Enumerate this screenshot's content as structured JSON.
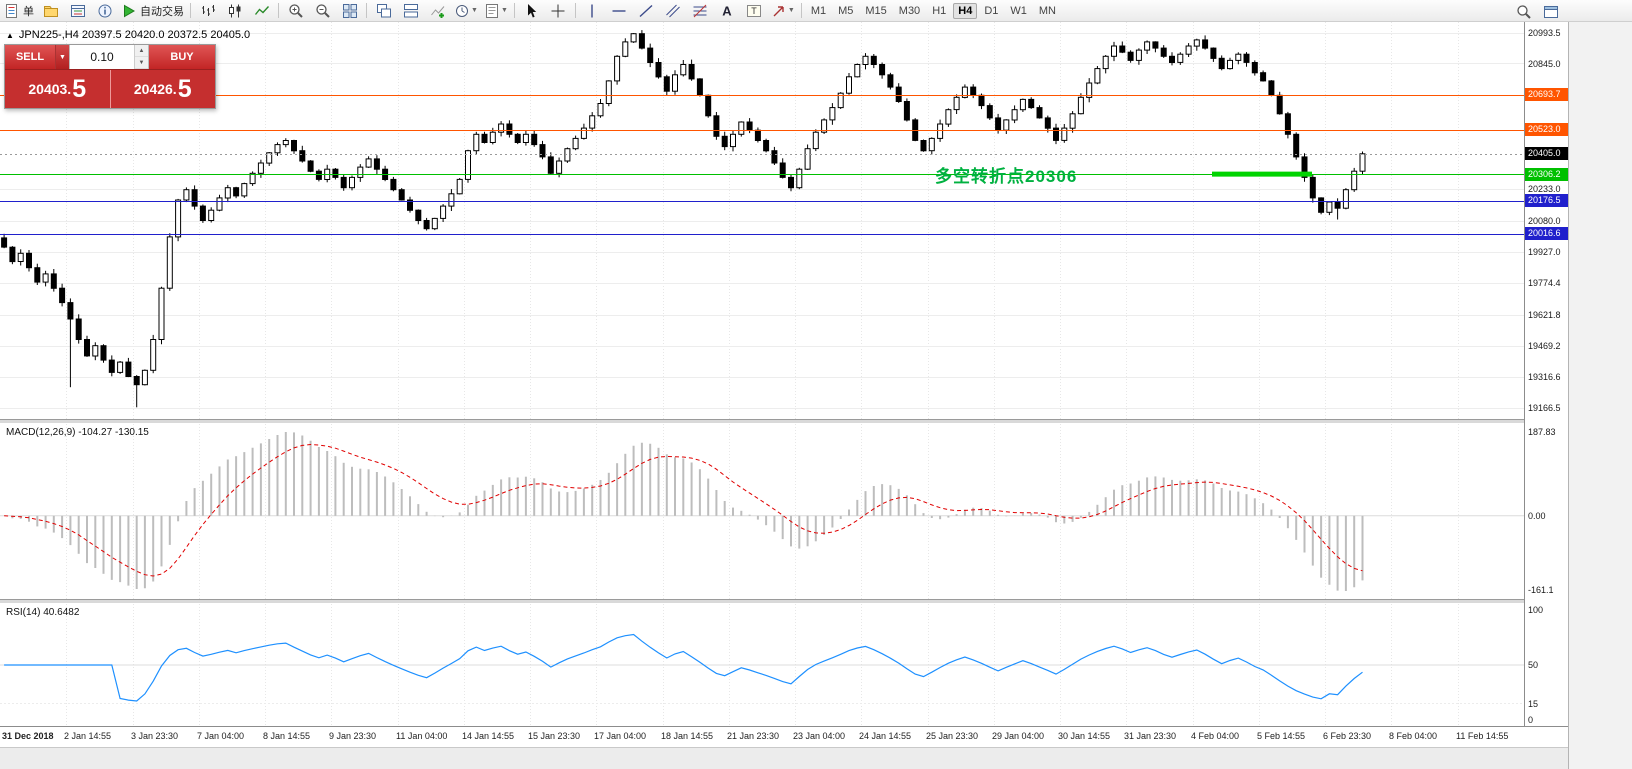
{
  "toolbar": {
    "items": [
      {
        "name": "new-order-button",
        "glyph": "order",
        "label": "单"
      },
      {
        "name": "charts-profile-icon",
        "glyph": "profile"
      },
      {
        "name": "market-watch-icon",
        "glyph": "mw"
      },
      {
        "name": "data-window-icon",
        "glyph": "info"
      },
      {
        "name": "autotrading-button",
        "glyph": "play",
        "label": "自动交易"
      },
      {
        "type": "sep"
      },
      {
        "name": "bar-chart-mode-icon",
        "glyph": "bars"
      },
      {
        "name": "candlestick-mode-icon",
        "glyph": "candle"
      },
      {
        "name": "line-chart-mode-icon",
        "glyph": "linec"
      },
      {
        "type": "sep"
      },
      {
        "name": "zoom-in-icon",
        "glyph": "zoomin"
      },
      {
        "name": "zoom-out-icon",
        "glyph": "zoomout"
      },
      {
        "name": "tile-windows-icon",
        "glyph": "tile"
      },
      {
        "type": "sep"
      },
      {
        "name": "cascade-windows-icon",
        "glyph": "cascade"
      },
      {
        "name": "arrange-windows-icon",
        "glyph": "tileh"
      },
      {
        "name": "indicators-icon",
        "glyph": "indic"
      },
      {
        "name": "periods-icon",
        "glyph": "clock",
        "dd": true
      },
      {
        "name": "templates-icon",
        "glyph": "tpl",
        "dd": true
      },
      {
        "type": "sep"
      },
      {
        "name": "cursor-icon",
        "glyph": "cursor"
      },
      {
        "name": "crosshair-icon",
        "glyph": "cross"
      },
      {
        "type": "sep"
      },
      {
        "name": "vertical-line-icon",
        "glyph": "vline"
      },
      {
        "name": "horizontal-line-icon",
        "glyph": "hline"
      },
      {
        "name": "trendline-icon",
        "glyph": "tline"
      },
      {
        "name": "equidistant-channel-icon",
        "glyph": "channel"
      },
      {
        "name": "fibonacci-icon",
        "glyph": "fibo"
      },
      {
        "name": "text-icon",
        "glyph": "textA"
      },
      {
        "name": "text-label-icon",
        "glyph": "textT"
      },
      {
        "name": "arrows-icon",
        "glyph": "arrow",
        "dd": true
      },
      {
        "type": "sep"
      }
    ],
    "timeframes": [
      "M1",
      "M5",
      "M15",
      "M30",
      "H1",
      "H4",
      "D1",
      "W1",
      "MN"
    ],
    "active_timeframe": "H4",
    "right_items": [
      {
        "name": "search-icon",
        "glyph": "search"
      },
      {
        "name": "new-chart-window-icon",
        "glyph": "window"
      }
    ]
  },
  "trade_panel": {
    "sell_label": "SELL",
    "buy_label": "BUY",
    "volume": "0.10",
    "bid_main": "20403.",
    "bid_big": "5",
    "ask_main": "20426.",
    "ask_big": "5"
  },
  "chart": {
    "collapse_icon": "▲",
    "symbol_header": "JPN225-,H4 20397.5 20420.0 20372.5 20405.0",
    "annotation_text": "多空转折点20306",
    "annotation_color": "#00b140"
  },
  "macd_panel": {
    "label": "MACD(12,26,9) -104.27 -130.15",
    "axis_top": "187.83",
    "axis_zero": "0.00",
    "axis_bottom": "-161.1"
  },
  "rsi_panel": {
    "label": "RSI(14) 40.6482",
    "axis_top": "100",
    "axis_mid": "50",
    "axis_low": "15",
    "axis_bottom": "0"
  },
  "time_axis": {
    "labels": [
      "31 Dec 2018",
      "2 Jan 14:55",
      "3 Jan 23:30",
      "7 Jan 04:00",
      "8 Jan 14:55",
      "9 Jan 23:30",
      "11 Jan 04:00",
      "14 Jan 14:55",
      "15 Jan 23:30",
      "17 Jan 04:00",
      "18 Jan 14:55",
      "21 Jan 23:30",
      "23 Jan 04:00",
      "24 Jan 14:55",
      "25 Jan 23:30",
      "29 Jan 04:00",
      "30 Jan 14:55",
      "31 Jan 23:30",
      "4 Feb 04:00",
      "5 Feb 14:55",
      "6 Feb 23:30",
      "8 Feb 04:00",
      "11 Feb 14:55"
    ]
  },
  "chart_data": {
    "type": "candlestick",
    "symbol": "JPN225-",
    "timeframe": "H4",
    "ohlc_current": {
      "open": "20397.5",
      "high": "20420.0",
      "low": "20372.5",
      "close": "20405.0"
    },
    "price_axis_top": 20993.5,
    "price_axis_bottom": 19166.5,
    "plain_ticks": [
      20845.0,
      20233.0,
      20080.0,
      19927.0,
      19774.4,
      19621.8,
      19469.2,
      19316.6
    ],
    "edge_ticks": [
      20993.5,
      19166.5
    ],
    "levels": [
      {
        "price": 20693.7,
        "label": "20693.7",
        "color": "#ff5500",
        "name": "resistance-line-20693"
      },
      {
        "price": 20523.0,
        "label": "20523.0",
        "color": "#ff5500",
        "name": "resistance-line-20523"
      },
      {
        "price": 20405.0,
        "label": "20405.0",
        "color": "#000000",
        "name": "current-price",
        "style": "current"
      },
      {
        "price": 20306.2,
        "label": "20306.2",
        "color": "#00c000",
        "name": "pivot-line-20306"
      },
      {
        "price": 20176.5,
        "label": "20176.5",
        "color": "#2020cc",
        "name": "support-line-20176"
      },
      {
        "price": 20016.6,
        "label": "20016.6",
        "color": "#2020cc",
        "name": "support-line-20016"
      }
    ],
    "highlight_segment": {
      "price": 20306.2,
      "x_start_frac": 0.795,
      "x_end_frac": 0.861,
      "color": "#00d400",
      "width": 5
    },
    "grid_slots": 184,
    "label_every": 8,
    "closes": [
      19950,
      19880,
      19920,
      19850,
      19780,
      19820,
      19750,
      19680,
      19600,
      19500,
      19420,
      19470,
      19400,
      19340,
      19390,
      19320,
      19280,
      19350,
      19500,
      19750,
      20000,
      20180,
      20230,
      20150,
      20080,
      20130,
      20190,
      20240,
      20200,
      20260,
      20310,
      20360,
      20410,
      20450,
      20470,
      20420,
      20370,
      20320,
      20280,
      20330,
      20290,
      20240,
      20290,
      20340,
      20380,
      20330,
      20280,
      20230,
      20180,
      20130,
      20080,
      20040,
      20090,
      20150,
      20210,
      20280,
      20420,
      20500,
      20460,
      20510,
      20550,
      20500,
      20460,
      20500,
      20450,
      20390,
      20310,
      20370,
      20430,
      20480,
      20530,
      20590,
      20650,
      20760,
      20880,
      20950,
      20990,
      20920,
      20850,
      20780,
      20710,
      20790,
      20840,
      20770,
      20690,
      20590,
      20490,
      20440,
      20500,
      20560,
      20520,
      20470,
      20420,
      20360,
      20290,
      20240,
      20330,
      20430,
      20510,
      20570,
      20630,
      20700,
      20780,
      20840,
      20880,
      20840,
      20790,
      20730,
      20660,
      20570,
      20470,
      20420,
      20480,
      20550,
      20620,
      20680,
      20730,
      20690,
      20640,
      20580,
      20520,
      20570,
      20620,
      20670,
      20630,
      20580,
      20530,
      20470,
      20530,
      20600,
      20680,
      20750,
      20820,
      20880,
      20930,
      20900,
      20860,
      20910,
      20950,
      20920,
      20880,
      20850,
      20890,
      20930,
      20960,
      20920,
      20870,
      20820,
      20860,
      20890,
      20850,
      20800,
      20760,
      20690,
      20600,
      20500,
      20390,
      20290,
      20190,
      20120,
      20170,
      20140,
      20230,
      20320,
      20405
    ],
    "wick_low_overrides": {
      "8": 19268,
      "16": 19170,
      "161": 20085
    },
    "wick_high_overrides": {
      "34": 20481,
      "76": 20993
    },
    "colors": {
      "up_candle": "#ffffff",
      "down_candle": "#000000",
      "grid": "#e7e7e7",
      "macd_histogram": "#bdbdbd",
      "macd_signal": "#e00000",
      "rsi_line": "#1e90ff"
    },
    "macd": {
      "fast": 12,
      "slow": 26,
      "signal": 9,
      "current": "-104.27",
      "signal_current": "-130.15"
    },
    "rsi": {
      "period": 14,
      "current": "40.6482"
    }
  }
}
